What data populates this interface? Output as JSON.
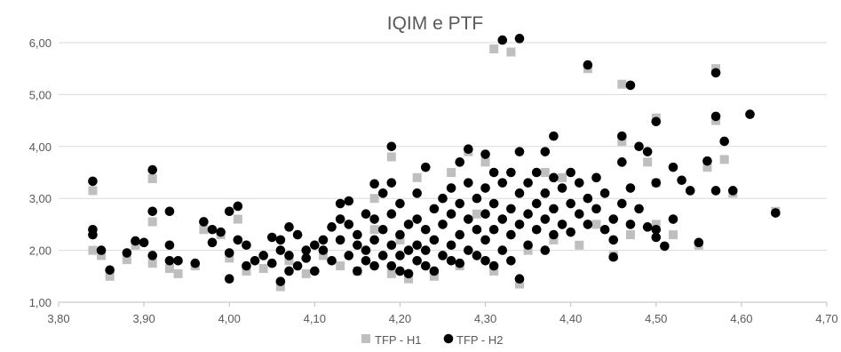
{
  "chart_data": {
    "type": "scatter",
    "title": "IQIM e PTF",
    "xlabel": "",
    "ylabel": "",
    "xlim": [
      3.8,
      4.7
    ],
    "ylim": [
      1.0,
      6.0
    ],
    "x_ticks": [
      "3,80",
      "3,90",
      "4,00",
      "4,10",
      "4,20",
      "4,30",
      "4,40",
      "4,50",
      "4,60",
      "4,70"
    ],
    "y_ticks": [
      "1,00",
      "2,00",
      "3,00",
      "4,00",
      "5,00",
      "6,00"
    ],
    "grid": "horizontal",
    "legend_position": "bottom",
    "colors": {
      "h1": "#bfbfbf",
      "h2": "#000000",
      "grid": "#d9d9d9",
      "text": "#595959"
    },
    "series": [
      {
        "name": "TFP - H1",
        "marker": "square",
        "points": [
          [
            3.84,
            3.15
          ],
          [
            3.84,
            2.0
          ],
          [
            3.85,
            1.9
          ],
          [
            3.86,
            1.5
          ],
          [
            3.88,
            1.82
          ],
          [
            3.89,
            2.1
          ],
          [
            3.91,
            3.38
          ],
          [
            3.91,
            2.55
          ],
          [
            3.91,
            1.75
          ],
          [
            3.93,
            1.65
          ],
          [
            3.94,
            1.55
          ],
          [
            3.96,
            1.7
          ],
          [
            3.97,
            2.4
          ],
          [
            3.99,
            2.3
          ],
          [
            4.0,
            1.85
          ],
          [
            4.01,
            2.6
          ],
          [
            4.02,
            1.6
          ],
          [
            4.04,
            1.65
          ],
          [
            4.06,
            1.3
          ],
          [
            4.07,
            1.8
          ],
          [
            4.09,
            1.55
          ],
          [
            4.11,
            1.9
          ],
          [
            4.13,
            1.7
          ],
          [
            4.15,
            1.6
          ],
          [
            4.17,
            2.4
          ],
          [
            4.17,
            3.0
          ],
          [
            4.19,
            3.8
          ],
          [
            4.19,
            1.55
          ],
          [
            4.2,
            2.2
          ],
          [
            4.21,
            1.45
          ],
          [
            4.22,
            3.4
          ],
          [
            4.24,
            1.5
          ],
          [
            4.26,
            3.5
          ],
          [
            4.27,
            1.7
          ],
          [
            4.28,
            3.9
          ],
          [
            4.29,
            2.7
          ],
          [
            4.3,
            3.7
          ],
          [
            4.31,
            1.6
          ],
          [
            4.31,
            5.88
          ],
          [
            4.33,
            5.82
          ],
          [
            4.34,
            1.35
          ],
          [
            4.35,
            2.0
          ],
          [
            4.37,
            3.5
          ],
          [
            4.38,
            2.2
          ],
          [
            4.39,
            3.4
          ],
          [
            4.41,
            2.1
          ],
          [
            4.42,
            5.5
          ],
          [
            4.43,
            2.5
          ],
          [
            4.45,
            1.9
          ],
          [
            4.46,
            4.1
          ],
          [
            4.46,
            5.2
          ],
          [
            4.47,
            2.3
          ],
          [
            4.49,
            3.7
          ],
          [
            4.5,
            4.55
          ],
          [
            4.5,
            2.5
          ],
          [
            4.5,
            3.3
          ],
          [
            4.52,
            2.3
          ],
          [
            4.55,
            2.1
          ],
          [
            4.56,
            3.6
          ],
          [
            4.57,
            5.5
          ],
          [
            4.57,
            4.5
          ],
          [
            4.58,
            3.75
          ],
          [
            4.59,
            3.1
          ],
          [
            4.64,
            2.75
          ]
        ]
      },
      {
        "name": "TFP - H2",
        "marker": "circle",
        "points": [
          [
            3.84,
            3.33
          ],
          [
            3.84,
            2.4
          ],
          [
            3.84,
            2.3
          ],
          [
            3.85,
            2.0
          ],
          [
            3.86,
            1.62
          ],
          [
            3.88,
            1.95
          ],
          [
            3.89,
            2.18
          ],
          [
            3.9,
            2.15
          ],
          [
            3.91,
            3.55
          ],
          [
            3.91,
            2.75
          ],
          [
            3.91,
            1.9
          ],
          [
            3.93,
            2.1
          ],
          [
            3.93,
            1.8
          ],
          [
            3.94,
            1.8
          ],
          [
            3.93,
            2.75
          ],
          [
            3.96,
            1.75
          ],
          [
            3.97,
            2.55
          ],
          [
            3.98,
            2.4
          ],
          [
            3.98,
            2.15
          ],
          [
            3.99,
            2.35
          ],
          [
            4.0,
            2.75
          ],
          [
            4.0,
            1.95
          ],
          [
            4.0,
            1.45
          ],
          [
            4.01,
            2.85
          ],
          [
            4.01,
            2.2
          ],
          [
            4.02,
            2.1
          ],
          [
            4.02,
            1.7
          ],
          [
            4.03,
            1.8
          ],
          [
            4.04,
            1.9
          ],
          [
            4.05,
            2.25
          ],
          [
            4.05,
            1.75
          ],
          [
            4.06,
            2.2
          ],
          [
            4.06,
            1.4
          ],
          [
            4.06,
            2.0
          ],
          [
            4.07,
            2.45
          ],
          [
            4.07,
            1.9
          ],
          [
            4.07,
            1.6
          ],
          [
            4.08,
            2.3
          ],
          [
            4.08,
            1.7
          ],
          [
            4.09,
            1.85
          ],
          [
            4.09,
            2.0
          ],
          [
            4.1,
            1.6
          ],
          [
            4.1,
            2.1
          ],
          [
            4.11,
            2.2
          ],
          [
            4.11,
            2.0
          ],
          [
            4.12,
            2.45
          ],
          [
            4.12,
            1.8
          ],
          [
            4.13,
            2.9
          ],
          [
            4.13,
            2.6
          ],
          [
            4.13,
            2.2
          ],
          [
            4.14,
            2.5
          ],
          [
            4.14,
            1.9
          ],
          [
            4.14,
            2.95
          ],
          [
            4.15,
            2.3
          ],
          [
            4.15,
            2.1
          ],
          [
            4.15,
            1.6
          ],
          [
            4.16,
            2.7
          ],
          [
            4.16,
            2.0
          ],
          [
            4.16,
            1.8
          ],
          [
            4.17,
            3.28
          ],
          [
            4.17,
            2.6
          ],
          [
            4.17,
            2.2
          ],
          [
            4.17,
            1.7
          ],
          [
            4.18,
            3.1
          ],
          [
            4.18,
            2.4
          ],
          [
            4.18,
            1.9
          ],
          [
            4.19,
            4.0
          ],
          [
            4.19,
            3.3
          ],
          [
            4.19,
            2.7
          ],
          [
            4.19,
            2.1
          ],
          [
            4.19,
            1.7
          ],
          [
            4.2,
            2.9
          ],
          [
            4.2,
            2.3
          ],
          [
            4.2,
            1.9
          ],
          [
            4.2,
            1.6
          ],
          [
            4.21,
            2.5
          ],
          [
            4.21,
            2.0
          ],
          [
            4.21,
            1.55
          ],
          [
            4.22,
            3.1
          ],
          [
            4.22,
            2.6
          ],
          [
            4.22,
            2.1
          ],
          [
            4.22,
            1.8
          ],
          [
            4.23,
            3.6
          ],
          [
            4.23,
            2.4
          ],
          [
            4.23,
            2.0
          ],
          [
            4.23,
            1.7
          ],
          [
            4.24,
            2.8
          ],
          [
            4.24,
            2.2
          ],
          [
            4.24,
            1.6
          ],
          [
            4.25,
            3.0
          ],
          [
            4.25,
            2.5
          ],
          [
            4.25,
            1.9
          ],
          [
            4.26,
            3.2
          ],
          [
            4.26,
            2.7
          ],
          [
            4.26,
            2.1
          ],
          [
            4.26,
            1.8
          ],
          [
            4.27,
            3.7
          ],
          [
            4.27,
            2.9
          ],
          [
            4.27,
            2.3
          ],
          [
            4.27,
            1.75
          ],
          [
            4.28,
            3.95
          ],
          [
            4.28,
            3.3
          ],
          [
            4.28,
            2.6
          ],
          [
            4.28,
            2.0
          ],
          [
            4.29,
            3.0
          ],
          [
            4.29,
            2.4
          ],
          [
            4.29,
            1.9
          ],
          [
            4.3,
            3.85
          ],
          [
            4.3,
            3.2
          ],
          [
            4.3,
            2.7
          ],
          [
            4.3,
            2.2
          ],
          [
            4.3,
            1.8
          ],
          [
            4.31,
            3.5
          ],
          [
            4.31,
            2.9
          ],
          [
            4.31,
            2.4
          ],
          [
            4.31,
            1.7
          ],
          [
            4.32,
            6.05
          ],
          [
            4.32,
            3.3
          ],
          [
            4.32,
            2.6
          ],
          [
            4.32,
            2.0
          ],
          [
            4.33,
            3.5
          ],
          [
            4.33,
            2.8
          ],
          [
            4.33,
            2.3
          ],
          [
            4.33,
            1.8
          ],
          [
            4.34,
            6.08
          ],
          [
            4.34,
            3.9
          ],
          [
            4.34,
            3.1
          ],
          [
            4.34,
            2.5
          ],
          [
            4.34,
            1.45
          ],
          [
            4.35,
            3.3
          ],
          [
            4.35,
            2.7
          ],
          [
            4.35,
            2.1
          ],
          [
            4.36,
            3.5
          ],
          [
            4.36,
            2.9
          ],
          [
            4.36,
            2.4
          ],
          [
            4.37,
            3.9
          ],
          [
            4.37,
            3.1
          ],
          [
            4.37,
            2.6
          ],
          [
            4.37,
            2.0
          ],
          [
            4.38,
            4.2
          ],
          [
            4.38,
            3.4
          ],
          [
            4.38,
            2.8
          ],
          [
            4.38,
            2.3
          ],
          [
            4.39,
            3.2
          ],
          [
            4.39,
            2.5
          ],
          [
            4.4,
            3.5
          ],
          [
            4.4,
            2.9
          ],
          [
            4.4,
            2.35
          ],
          [
            4.41,
            3.3
          ],
          [
            4.41,
            2.7
          ],
          [
            4.42,
            5.57
          ],
          [
            4.42,
            3.0
          ],
          [
            4.42,
            2.5
          ],
          [
            4.43,
            3.4
          ],
          [
            4.43,
            2.8
          ],
          [
            4.44,
            3.1
          ],
          [
            4.44,
            2.4
          ],
          [
            4.45,
            2.6
          ],
          [
            4.45,
            1.87
          ],
          [
            4.45,
            2.2
          ],
          [
            4.46,
            3.7
          ],
          [
            4.46,
            2.9
          ],
          [
            4.46,
            4.2
          ],
          [
            4.47,
            5.18
          ],
          [
            4.47,
            2.5
          ],
          [
            4.47,
            3.2
          ],
          [
            4.48,
            2.8
          ],
          [
            4.48,
            4.0
          ],
          [
            4.49,
            3.9
          ],
          [
            4.49,
            2.45
          ],
          [
            4.5,
            4.48
          ],
          [
            4.5,
            3.3
          ],
          [
            4.5,
            2.4
          ],
          [
            4.5,
            2.25
          ],
          [
            4.51,
            2.08
          ],
          [
            4.52,
            3.6
          ],
          [
            4.52,
            2.6
          ],
          [
            4.53,
            3.35
          ],
          [
            4.54,
            3.15
          ],
          [
            4.55,
            2.15
          ],
          [
            4.56,
            3.72
          ],
          [
            4.57,
            5.42
          ],
          [
            4.57,
            4.58
          ],
          [
            4.57,
            3.15
          ],
          [
            4.58,
            4.1
          ],
          [
            4.59,
            3.15
          ],
          [
            4.61,
            4.62
          ],
          [
            4.64,
            2.72
          ]
        ]
      }
    ]
  }
}
